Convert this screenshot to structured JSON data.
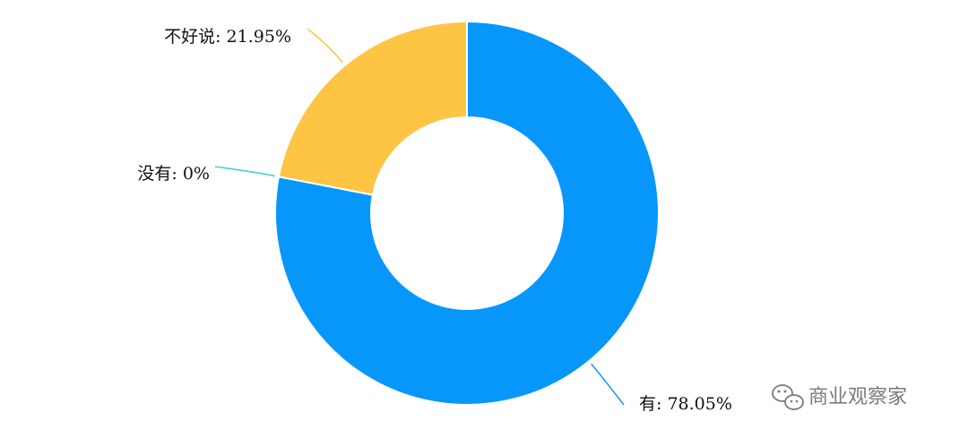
{
  "chart_data": {
    "type": "pie",
    "donut": true,
    "slices": [
      {
        "label": "有",
        "value": 78.05,
        "display": "有: 78.05%",
        "color": "#0797FA"
      },
      {
        "label": "没有",
        "value": 0,
        "display": "没有: 0%",
        "color": "#41D1C7"
      },
      {
        "label": "不好说",
        "value": 21.95,
        "display": "不好说: 21.95%",
        "color": "#FDC543"
      }
    ]
  },
  "watermark": {
    "text": "商业观察家",
    "icon": "wechat-icon",
    "color": "#7a7a7a"
  }
}
